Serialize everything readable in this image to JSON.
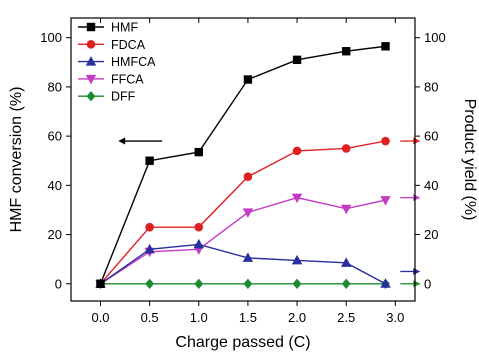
{
  "chart_data": {
    "type": "line",
    "xlabel": "Charge passed (C)",
    "ylabel": "HMF conversion (%)",
    "ylabel_right": "Product yield (%)",
    "xlim": [
      -0.3,
      3.2
    ],
    "ylim": [
      -7,
      108
    ],
    "xticks": [
      0.0,
      0.5,
      1.0,
      1.5,
      2.0,
      2.5,
      3.0
    ],
    "xtick_labels": [
      "0.0",
      "0.5",
      "1.0",
      "1.5",
      "2.0",
      "2.5",
      "3.0"
    ],
    "yticks": [
      0,
      20,
      40,
      60,
      80,
      100
    ],
    "ytick_labels": [
      "0",
      "20",
      "40",
      "60",
      "80",
      "100"
    ],
    "grid": false,
    "legend_placement": "top-left",
    "series": [
      {
        "name": "HMF",
        "color": "#000000",
        "marker": "square",
        "x": [
          0.0,
          0.5,
          1.0,
          1.5,
          2.0,
          2.5,
          2.9
        ],
        "y": [
          0,
          50,
          53.5,
          83,
          91,
          94.5,
          96.5
        ]
      },
      {
        "name": "FDCA",
        "color": "#e02020",
        "marker": "circle",
        "x": [
          0.0,
          0.5,
          1.0,
          1.5,
          2.0,
          2.5,
          2.9
        ],
        "y": [
          0,
          23,
          23,
          43.5,
          54,
          55,
          58
        ]
      },
      {
        "name": "HMFCA",
        "color": "#2b2e9e",
        "marker": "triangle-up",
        "x": [
          0.0,
          0.5,
          1.0,
          1.5,
          2.0,
          2.5,
          2.9
        ],
        "y": [
          0,
          14,
          16,
          10.5,
          9.5,
          8.5,
          0
        ]
      },
      {
        "name": "FFCA",
        "color": "#c33cc3",
        "marker": "triangle-down",
        "x": [
          0.0,
          0.5,
          1.0,
          1.5,
          2.0,
          2.5,
          2.9
        ],
        "y": [
          0,
          13,
          14,
          29,
          35,
          30.5,
          34
        ]
      },
      {
        "name": "DFF",
        "color": "#1a8c2e",
        "marker": "diamond",
        "x": [
          0.0,
          0.5,
          1.0,
          1.5,
          2.0,
          2.5,
          2.9
        ],
        "y": [
          0,
          0,
          0,
          0,
          0,
          0,
          0
        ]
      }
    ],
    "annotations": [
      {
        "type": "arrow",
        "direction": "left",
        "color": "#000000",
        "at": [
          0.18,
          58
        ]
      },
      {
        "type": "arrow",
        "direction": "right",
        "color": "#e02020",
        "at": [
          3.05,
          58
        ]
      },
      {
        "type": "arrow",
        "direction": "right",
        "color": "#c33cc3",
        "at": [
          3.05,
          35
        ]
      },
      {
        "type": "arrow",
        "direction": "right",
        "color": "#2b2e9e",
        "at": [
          3.05,
          5
        ]
      },
      {
        "type": "arrow",
        "direction": "right",
        "color": "#1a8c2e",
        "at": [
          3.05,
          0
        ]
      }
    ]
  }
}
